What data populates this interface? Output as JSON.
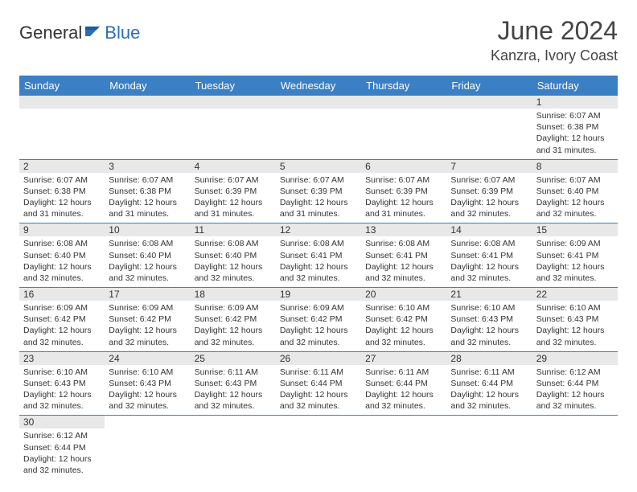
{
  "logo": {
    "part1": "General",
    "part2": "Blue"
  },
  "title": "June 2024",
  "location": "Kanzra, Ivory Coast",
  "colors": {
    "header_bg": "#3b7fc4",
    "header_text": "#ffffff",
    "daynum_bg": "#e8e8e8",
    "cell_border": "#3b7fc4",
    "logo_blue": "#2a6db8",
    "text": "#333333"
  },
  "day_headers": [
    "Sunday",
    "Monday",
    "Tuesday",
    "Wednesday",
    "Thursday",
    "Friday",
    "Saturday"
  ],
  "weeks": [
    [
      null,
      null,
      null,
      null,
      null,
      null,
      {
        "num": "1",
        "sunrise": "Sunrise: 6:07 AM",
        "sunset": "Sunset: 6:38 PM",
        "daylight": "Daylight: 12 hours and 31 minutes."
      }
    ],
    [
      {
        "num": "2",
        "sunrise": "Sunrise: 6:07 AM",
        "sunset": "Sunset: 6:38 PM",
        "daylight": "Daylight: 12 hours and 31 minutes."
      },
      {
        "num": "3",
        "sunrise": "Sunrise: 6:07 AM",
        "sunset": "Sunset: 6:38 PM",
        "daylight": "Daylight: 12 hours and 31 minutes."
      },
      {
        "num": "4",
        "sunrise": "Sunrise: 6:07 AM",
        "sunset": "Sunset: 6:39 PM",
        "daylight": "Daylight: 12 hours and 31 minutes."
      },
      {
        "num": "5",
        "sunrise": "Sunrise: 6:07 AM",
        "sunset": "Sunset: 6:39 PM",
        "daylight": "Daylight: 12 hours and 31 minutes."
      },
      {
        "num": "6",
        "sunrise": "Sunrise: 6:07 AM",
        "sunset": "Sunset: 6:39 PM",
        "daylight": "Daylight: 12 hours and 31 minutes."
      },
      {
        "num": "7",
        "sunrise": "Sunrise: 6:07 AM",
        "sunset": "Sunset: 6:39 PM",
        "daylight": "Daylight: 12 hours and 32 minutes."
      },
      {
        "num": "8",
        "sunrise": "Sunrise: 6:07 AM",
        "sunset": "Sunset: 6:40 PM",
        "daylight": "Daylight: 12 hours and 32 minutes."
      }
    ],
    [
      {
        "num": "9",
        "sunrise": "Sunrise: 6:08 AM",
        "sunset": "Sunset: 6:40 PM",
        "daylight": "Daylight: 12 hours and 32 minutes."
      },
      {
        "num": "10",
        "sunrise": "Sunrise: 6:08 AM",
        "sunset": "Sunset: 6:40 PM",
        "daylight": "Daylight: 12 hours and 32 minutes."
      },
      {
        "num": "11",
        "sunrise": "Sunrise: 6:08 AM",
        "sunset": "Sunset: 6:40 PM",
        "daylight": "Daylight: 12 hours and 32 minutes."
      },
      {
        "num": "12",
        "sunrise": "Sunrise: 6:08 AM",
        "sunset": "Sunset: 6:41 PM",
        "daylight": "Daylight: 12 hours and 32 minutes."
      },
      {
        "num": "13",
        "sunrise": "Sunrise: 6:08 AM",
        "sunset": "Sunset: 6:41 PM",
        "daylight": "Daylight: 12 hours and 32 minutes."
      },
      {
        "num": "14",
        "sunrise": "Sunrise: 6:08 AM",
        "sunset": "Sunset: 6:41 PM",
        "daylight": "Daylight: 12 hours and 32 minutes."
      },
      {
        "num": "15",
        "sunrise": "Sunrise: 6:09 AM",
        "sunset": "Sunset: 6:41 PM",
        "daylight": "Daylight: 12 hours and 32 minutes."
      }
    ],
    [
      {
        "num": "16",
        "sunrise": "Sunrise: 6:09 AM",
        "sunset": "Sunset: 6:42 PM",
        "daylight": "Daylight: 12 hours and 32 minutes."
      },
      {
        "num": "17",
        "sunrise": "Sunrise: 6:09 AM",
        "sunset": "Sunset: 6:42 PM",
        "daylight": "Daylight: 12 hours and 32 minutes."
      },
      {
        "num": "18",
        "sunrise": "Sunrise: 6:09 AM",
        "sunset": "Sunset: 6:42 PM",
        "daylight": "Daylight: 12 hours and 32 minutes."
      },
      {
        "num": "19",
        "sunrise": "Sunrise: 6:09 AM",
        "sunset": "Sunset: 6:42 PM",
        "daylight": "Daylight: 12 hours and 32 minutes."
      },
      {
        "num": "20",
        "sunrise": "Sunrise: 6:10 AM",
        "sunset": "Sunset: 6:42 PM",
        "daylight": "Daylight: 12 hours and 32 minutes."
      },
      {
        "num": "21",
        "sunrise": "Sunrise: 6:10 AM",
        "sunset": "Sunset: 6:43 PM",
        "daylight": "Daylight: 12 hours and 32 minutes."
      },
      {
        "num": "22",
        "sunrise": "Sunrise: 6:10 AM",
        "sunset": "Sunset: 6:43 PM",
        "daylight": "Daylight: 12 hours and 32 minutes."
      }
    ],
    [
      {
        "num": "23",
        "sunrise": "Sunrise: 6:10 AM",
        "sunset": "Sunset: 6:43 PM",
        "daylight": "Daylight: 12 hours and 32 minutes."
      },
      {
        "num": "24",
        "sunrise": "Sunrise: 6:10 AM",
        "sunset": "Sunset: 6:43 PM",
        "daylight": "Daylight: 12 hours and 32 minutes."
      },
      {
        "num": "25",
        "sunrise": "Sunrise: 6:11 AM",
        "sunset": "Sunset: 6:43 PM",
        "daylight": "Daylight: 12 hours and 32 minutes."
      },
      {
        "num": "26",
        "sunrise": "Sunrise: 6:11 AM",
        "sunset": "Sunset: 6:44 PM",
        "daylight": "Daylight: 12 hours and 32 minutes."
      },
      {
        "num": "27",
        "sunrise": "Sunrise: 6:11 AM",
        "sunset": "Sunset: 6:44 PM",
        "daylight": "Daylight: 12 hours and 32 minutes."
      },
      {
        "num": "28",
        "sunrise": "Sunrise: 6:11 AM",
        "sunset": "Sunset: 6:44 PM",
        "daylight": "Daylight: 12 hours and 32 minutes."
      },
      {
        "num": "29",
        "sunrise": "Sunrise: 6:12 AM",
        "sunset": "Sunset: 6:44 PM",
        "daylight": "Daylight: 12 hours and 32 minutes."
      }
    ],
    [
      {
        "num": "30",
        "sunrise": "Sunrise: 6:12 AM",
        "sunset": "Sunset: 6:44 PM",
        "daylight": "Daylight: 12 hours and 32 minutes."
      },
      null,
      null,
      null,
      null,
      null,
      null
    ]
  ]
}
